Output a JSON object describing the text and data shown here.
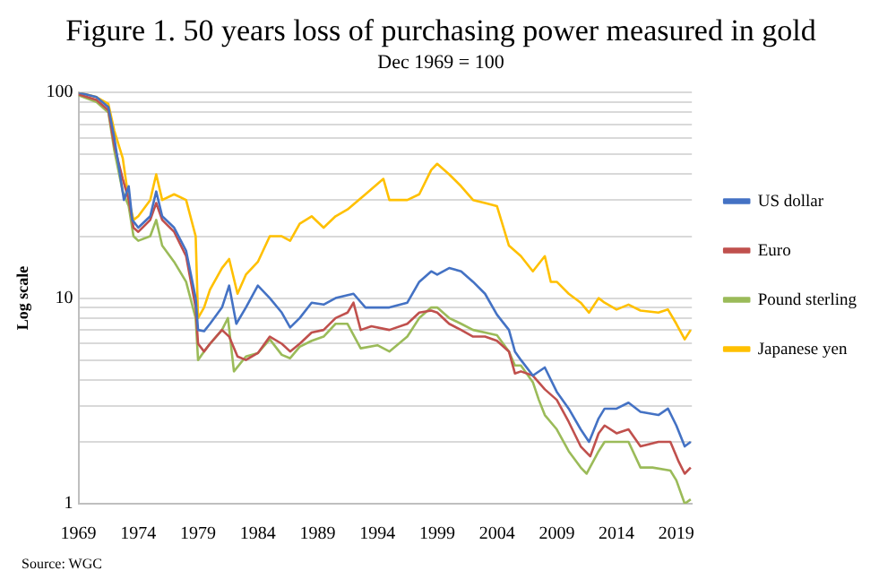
{
  "chart_data": {
    "type": "line",
    "title": "Figure 1. 50 years loss of purchasing power measured in gold",
    "subtitle": "Dec 1969 = 100",
    "ylabel": "Log scale",
    "annotations": [
      "Source: WGC"
    ],
    "log": "y",
    "grid": "y",
    "legend": "right",
    "marker": "none",
    "line_style": "solid",
    "xlim": [
      1969,
      2020.3
    ],
    "xticks": [
      1969,
      1974,
      1979,
      1984,
      1989,
      1994,
      1999,
      2004,
      2009,
      2014,
      2019
    ],
    "ylim": [
      1,
      100
    ],
    "yticks": [
      1,
      {
        "value": 2,
        "label": null
      },
      {
        "value": 3,
        "label": null
      },
      {
        "value": 4,
        "label": null
      },
      {
        "value": 5,
        "label": null
      },
      {
        "value": 6,
        "label": null
      },
      {
        "value": 7,
        "label": null
      },
      {
        "value": 8,
        "label": null
      },
      {
        "value": 9,
        "label": null
      },
      10,
      {
        "value": 20,
        "label": null
      },
      {
        "value": 30,
        "label": null
      },
      {
        "value": 40,
        "label": null
      },
      {
        "value": 50,
        "label": null
      },
      {
        "value": 60,
        "label": null
      },
      {
        "value": 70,
        "label": null
      },
      {
        "value": 80,
        "label": null
      },
      {
        "value": 90,
        "label": null
      },
      100
    ],
    "series": [
      {
        "name": "US dollar",
        "color": "#4472c4",
        "x": [
          1969,
          1970.5,
          1971.5,
          1972,
          1972.8,
          1973.2,
          1973.5,
          1974,
          1975,
          1975.5,
          1976,
          1977,
          1978,
          1978.8,
          1979,
          1979.5,
          1980,
          1981,
          1981.6,
          1982.2,
          1983,
          1984,
          1985,
          1986,
          1986.7,
          1987.5,
          1988.5,
          1989.5,
          1990.5,
          1992,
          1993,
          1995,
          1996.5,
          1997.5,
          1998.5,
          1999,
          2000,
          2001,
          2002,
          2003,
          2004,
          2005,
          2005.5,
          2006,
          2007,
          2008,
          2009,
          2010,
          2011,
          2011.7,
          2012.5,
          2013,
          2014,
          2015,
          2016,
          2017.5,
          2018.3,
          2019,
          2019.7,
          2020.2
        ],
        "values": [
          100,
          95,
          85,
          60,
          30,
          35,
          24,
          22,
          25,
          33,
          25,
          22,
          17,
          10,
          7,
          6.9,
          7.5,
          9,
          11.5,
          7.5,
          9,
          11.5,
          10,
          8.5,
          7.2,
          8,
          9.5,
          9.3,
          10,
          10.5,
          9,
          9,
          9.5,
          12,
          13.5,
          13,
          14,
          13.5,
          12,
          10.5,
          8.3,
          7,
          5.5,
          5,
          4.2,
          4.6,
          3.5,
          2.9,
          2.3,
          2,
          2.6,
          2.9,
          2.9,
          3.1,
          2.8,
          2.7,
          2.9,
          2.4,
          1.9,
          2
        ]
      },
      {
        "name": "Euro",
        "color": "#c0504d",
        "x": [
          1969,
          1970.5,
          1971.5,
          1972,
          1972.7,
          1973.2,
          1973.6,
          1974,
          1975,
          1975.5,
          1976,
          1977,
          1978,
          1978.8,
          1979,
          1979.5,
          1980,
          1981,
          1981.6,
          1982.3,
          1983,
          1984,
          1985,
          1986,
          1986.7,
          1987.5,
          1988.5,
          1989.5,
          1990.5,
          1991.5,
          1992,
          1992.6,
          1993.5,
          1995,
          1996.5,
          1997.5,
          1998.5,
          1999,
          2000,
          2001,
          2002,
          2003,
          2004,
          2005,
          2005.5,
          2006,
          2007,
          2008,
          2009,
          2010,
          2011,
          2011.8,
          2012.5,
          2013,
          2014,
          2015,
          2016,
          2017.5,
          2018.5,
          2019.2,
          2019.7,
          2020.2
        ],
        "values": [
          98,
          92,
          82,
          55,
          38,
          30,
          22,
          21,
          24,
          29,
          24,
          21,
          16,
          9,
          6,
          5.5,
          6,
          7,
          6.5,
          5.2,
          5,
          5.4,
          6.5,
          6,
          5.5,
          6,
          6.8,
          7,
          8,
          8.5,
          9.5,
          7,
          7.3,
          7,
          7.5,
          8.5,
          8.7,
          8.5,
          7.5,
          7,
          6.5,
          6.5,
          6.2,
          5.5,
          4.3,
          4.4,
          4.2,
          3.6,
          3.2,
          2.5,
          1.9,
          1.7,
          2.2,
          2.4,
          2.2,
          2.3,
          1.9,
          2,
          2,
          1.6,
          1.4,
          1.5
        ]
      },
      {
        "name": "Pound sterling",
        "color": "#9bbb59",
        "x": [
          1969,
          1970.5,
          1971.5,
          1972,
          1972.7,
          1973.2,
          1973.6,
          1974,
          1975,
          1975.5,
          1976,
          1977,
          1978,
          1978.8,
          1979,
          1979.5,
          1980,
          1981,
          1981.5,
          1982,
          1983,
          1984,
          1985,
          1986,
          1986.7,
          1987.5,
          1988.5,
          1989.5,
          1990.5,
          1991.5,
          1992.6,
          1994,
          1995,
          1996.5,
          1997.5,
          1998.5,
          1999,
          2000,
          2001,
          2002,
          2003,
          2004,
          2005,
          2005.5,
          2006,
          2007,
          2007.5,
          2008,
          2009,
          2010,
          2011,
          2011.5,
          2012.5,
          2013,
          2014,
          2015,
          2016,
          2017,
          2018.5,
          2019,
          2019.7,
          2020.2
        ],
        "values": [
          97,
          90,
          80,
          52,
          33,
          28,
          20,
          19,
          20,
          24,
          18,
          15,
          12,
          8,
          5,
          5.5,
          6,
          7,
          8,
          4.4,
          5.2,
          5.4,
          6.3,
          5.3,
          5.1,
          5.8,
          6.2,
          6.5,
          7.5,
          7.5,
          5.7,
          5.9,
          5.5,
          6.5,
          8,
          9,
          9,
          8,
          7.5,
          7,
          6.8,
          6.6,
          5.5,
          4.7,
          4.7,
          3.9,
          3.2,
          2.7,
          2.3,
          1.8,
          1.5,
          1.4,
          1.8,
          2,
          2,
          2,
          1.5,
          1.5,
          1.45,
          1.3,
          1,
          1.05
        ]
      },
      {
        "name": "Japanese yen",
        "color": "#ffc000",
        "x": [
          1969,
          1970.5,
          1971.5,
          1972,
          1972.7,
          1973.2,
          1973.6,
          1974,
          1975,
          1975.5,
          1976,
          1977,
          1978,
          1978.8,
          1979,
          1979.5,
          1980,
          1981,
          1981.6,
          1982.3,
          1983,
          1984,
          1985,
          1986,
          1986.7,
          1987.5,
          1988.5,
          1989.5,
          1990.5,
          1991.5,
          1993,
          1994.5,
          1995,
          1996.5,
          1997.5,
          1998.5,
          1999,
          2000,
          2001,
          2002,
          2003,
          2004,
          2005,
          2006,
          2007,
          2008,
          2008.5,
          2009,
          2010,
          2011,
          2011.7,
          2012.5,
          2013,
          2014,
          2015,
          2016,
          2017.5,
          2018.3,
          2019,
          2019.7,
          2020.2
        ],
        "values": [
          100,
          95,
          88,
          65,
          48,
          30,
          24,
          25,
          30,
          40,
          30,
          32,
          30,
          20,
          8,
          9,
          11,
          14,
          15.5,
          10.5,
          13,
          15,
          20,
          20,
          19,
          23,
          25,
          22,
          25,
          27,
          32,
          38,
          30,
          30,
          32,
          42,
          45,
          40,
          35,
          30,
          29,
          28,
          18,
          16,
          13.5,
          16,
          12,
          12,
          10.5,
          9.5,
          8.5,
          10,
          9.5,
          8.8,
          9.3,
          8.7,
          8.5,
          8.8,
          7.5,
          6.3,
          7
        ]
      }
    ]
  }
}
